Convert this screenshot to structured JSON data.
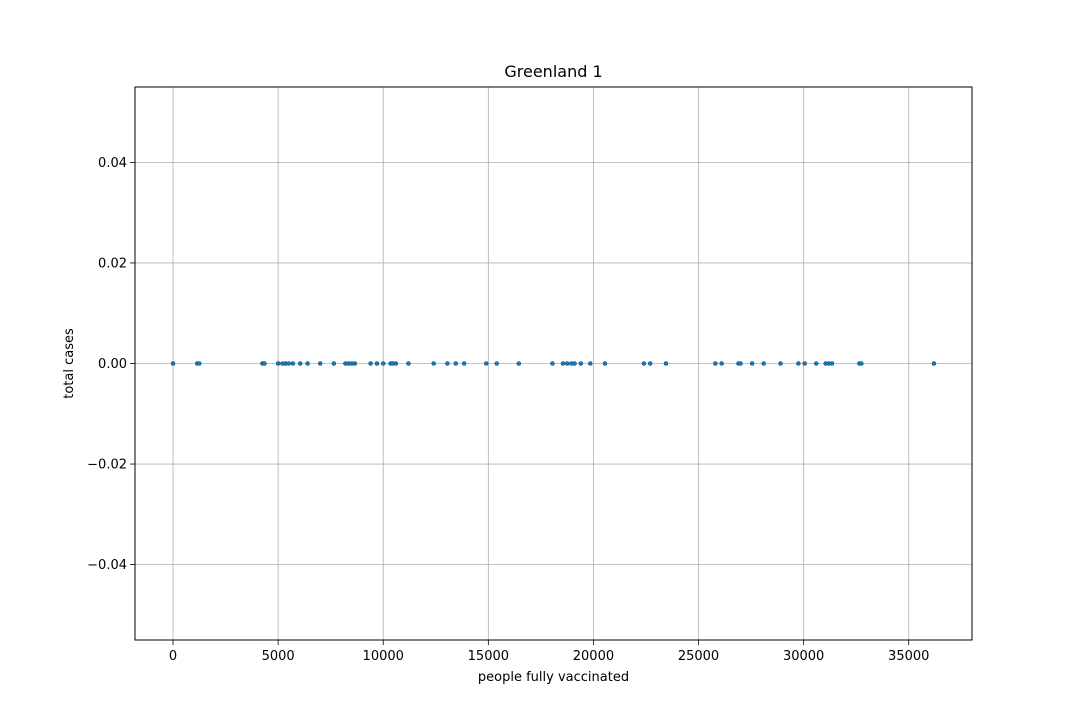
{
  "chart_data": {
    "type": "scatter",
    "title": "Greenland 1",
    "xlabel": "people fully vaccinated",
    "ylabel": "total cases",
    "xlim": [
      -1810,
      38010
    ],
    "ylim": [
      -0.055,
      0.055
    ],
    "xticks": [
      0,
      5000,
      10000,
      15000,
      20000,
      25000,
      30000,
      35000
    ],
    "xtick_labels": [
      "0",
      "5000",
      "10000",
      "15000",
      "20000",
      "25000",
      "30000",
      "35000"
    ],
    "yticks": [
      -0.04,
      -0.02,
      0.0,
      0.02,
      0.04
    ],
    "ytick_labels": [
      "−0.04",
      "−0.02",
      "0.00",
      "0.02",
      "0.04"
    ],
    "grid": true,
    "marker_color": "#1f77b4",
    "points": [
      {
        "x": 0,
        "y": 0
      },
      {
        "x": 1150,
        "y": 0
      },
      {
        "x": 1250,
        "y": 0
      },
      {
        "x": 4250,
        "y": 0
      },
      {
        "x": 4350,
        "y": 0
      },
      {
        "x": 5000,
        "y": 0
      },
      {
        "x": 5200,
        "y": 0
      },
      {
        "x": 5350,
        "y": 0
      },
      {
        "x": 5500,
        "y": 0
      },
      {
        "x": 5700,
        "y": 0
      },
      {
        "x": 6050,
        "y": 0
      },
      {
        "x": 6400,
        "y": 0
      },
      {
        "x": 7000,
        "y": 0
      },
      {
        "x": 7650,
        "y": 0
      },
      {
        "x": 8200,
        "y": 0
      },
      {
        "x": 8350,
        "y": 0
      },
      {
        "x": 8500,
        "y": 0
      },
      {
        "x": 8650,
        "y": 0
      },
      {
        "x": 9400,
        "y": 0
      },
      {
        "x": 9700,
        "y": 0
      },
      {
        "x": 10000,
        "y": 0
      },
      {
        "x": 10350,
        "y": 0
      },
      {
        "x": 10450,
        "y": 0
      },
      {
        "x": 10600,
        "y": 0
      },
      {
        "x": 11200,
        "y": 0
      },
      {
        "x": 12400,
        "y": 0
      },
      {
        "x": 13050,
        "y": 0
      },
      {
        "x": 13450,
        "y": 0
      },
      {
        "x": 13850,
        "y": 0
      },
      {
        "x": 14900,
        "y": 0
      },
      {
        "x": 15400,
        "y": 0
      },
      {
        "x": 16450,
        "y": 0
      },
      {
        "x": 18050,
        "y": 0
      },
      {
        "x": 18550,
        "y": 0
      },
      {
        "x": 18750,
        "y": 0
      },
      {
        "x": 18950,
        "y": 0
      },
      {
        "x": 19100,
        "y": 0
      },
      {
        "x": 19400,
        "y": 0
      },
      {
        "x": 19850,
        "y": 0
      },
      {
        "x": 20550,
        "y": 0
      },
      {
        "x": 22400,
        "y": 0
      },
      {
        "x": 22700,
        "y": 0
      },
      {
        "x": 23450,
        "y": 0
      },
      {
        "x": 25800,
        "y": 0
      },
      {
        "x": 26100,
        "y": 0
      },
      {
        "x": 26900,
        "y": 0
      },
      {
        "x": 27000,
        "y": 0
      },
      {
        "x": 27550,
        "y": 0
      },
      {
        "x": 28100,
        "y": 0
      },
      {
        "x": 28900,
        "y": 0
      },
      {
        "x": 29750,
        "y": 0
      },
      {
        "x": 30050,
        "y": 0
      },
      {
        "x": 30600,
        "y": 0
      },
      {
        "x": 31050,
        "y": 0
      },
      {
        "x": 31200,
        "y": 0
      },
      {
        "x": 31350,
        "y": 0
      },
      {
        "x": 32650,
        "y": 0
      },
      {
        "x": 32750,
        "y": 0
      },
      {
        "x": 36200,
        "y": 0
      }
    ]
  }
}
